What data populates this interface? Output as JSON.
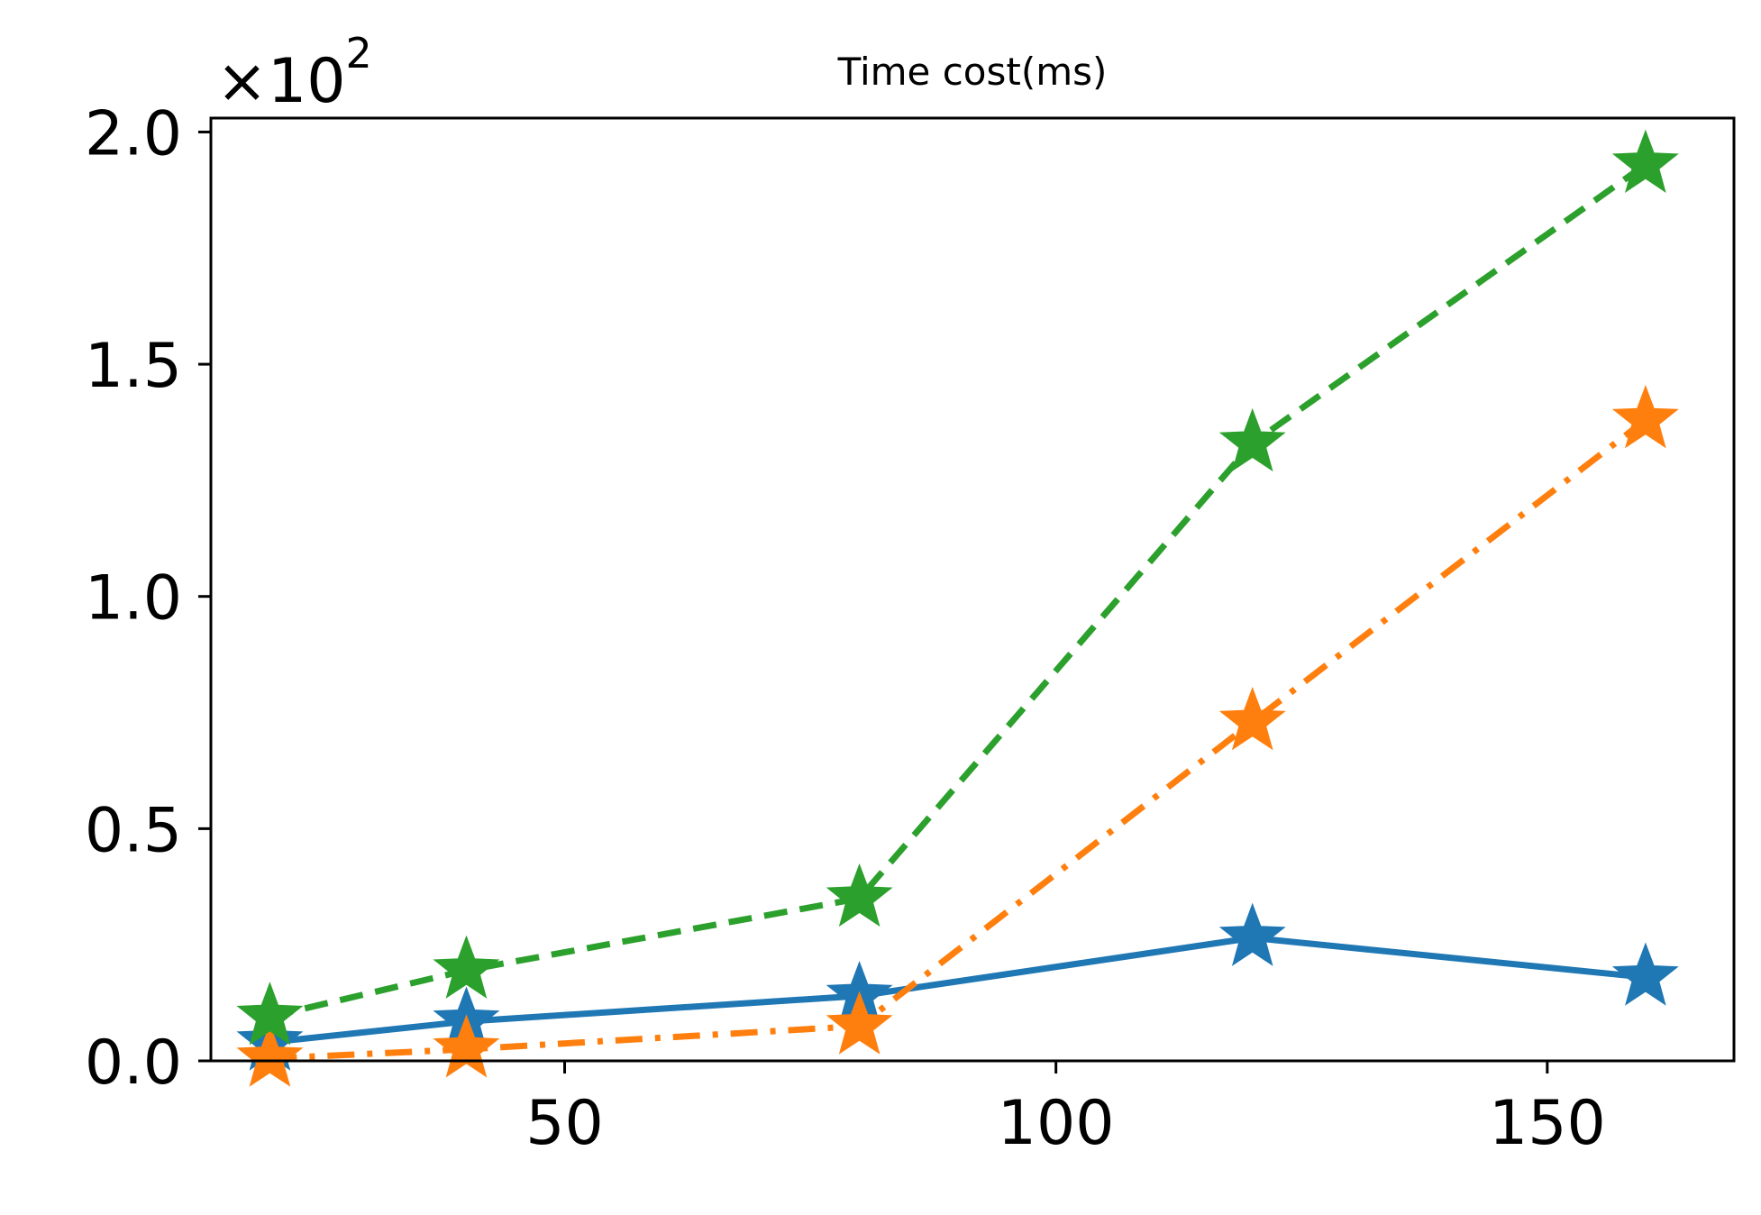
{
  "chart_data": {
    "type": "line",
    "title": "Time cost(ms)",
    "xlabel": "",
    "ylabel": "",
    "y_multiplier": {
      "base": "×10",
      "exponent": "2"
    },
    "xlim": [
      14,
      169
    ],
    "ylim": [
      0,
      2.03
    ],
    "x_ticks": [
      50,
      100,
      150
    ],
    "x_tick_labels": [
      "50",
      "100",
      "150"
    ],
    "y_ticks": [
      0.0,
      0.5,
      1.0,
      1.5,
      2.0
    ],
    "y_tick_labels": [
      "0.0",
      "0.5",
      "1.0",
      "1.5",
      "2.0"
    ],
    "grid": false,
    "legend": null,
    "series": [
      {
        "color": "#1f77b4",
        "line_style": "solid",
        "marker": "star",
        "x": [
          20,
          40,
          80,
          120,
          160
        ],
        "y": [
          0.04,
          0.085,
          0.14,
          0.265,
          0.18
        ]
      },
      {
        "color": "#ff7f0e",
        "line_style": "dashdot",
        "marker": "star",
        "x": [
          20,
          40,
          80,
          120,
          160
        ],
        "y": [
          0.005,
          0.025,
          0.075,
          0.73,
          1.38
        ]
      },
      {
        "color": "#2ca02c",
        "line_style": "dashed",
        "marker": "star",
        "x": [
          20,
          40,
          80,
          120,
          160
        ],
        "y": [
          0.095,
          0.195,
          0.35,
          1.33,
          1.93
        ]
      }
    ]
  }
}
